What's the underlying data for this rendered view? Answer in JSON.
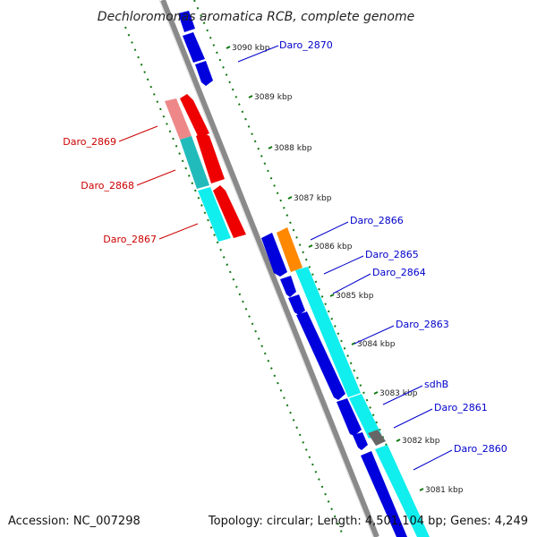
{
  "header": {
    "title": "Dechloromonas aromatica RCB, complete genome"
  },
  "footer": {
    "accession": "Accession: NC_007298",
    "summary": "Topology: circular; Length: 4,501,104 bp; Genes: 4,249"
  },
  "scale": {
    "ticks": [
      "3090 kbp",
      "3089 kbp",
      "3088 kbp",
      "3087 kbp",
      "3086 kbp",
      "3085 kbp",
      "3084 kbp",
      "3083 kbp",
      "3082 kbp",
      "3081 kbp"
    ]
  },
  "genes": {
    "forward": [
      "Daro_2866",
      "Daro_2865",
      "Daro_2864",
      "Daro_2863",
      "sdhB",
      "Daro_2861",
      "Daro_2860",
      "Daro_2870"
    ],
    "reverse": [
      "Daro_2869",
      "Daro_2868",
      "Daro_2867"
    ]
  },
  "colors": {
    "forward_label": "#0000cc",
    "reverse_label": "#cc0000",
    "cds_blue": "#0000dd",
    "cds_cyan": "#11eeee",
    "cds_red": "#ee0000",
    "cds_orange": "#ff8800",
    "cds_teal": "#22bbbb",
    "cds_pink": "#ee8888",
    "backbone": "#888888",
    "dots": "#117711"
  }
}
